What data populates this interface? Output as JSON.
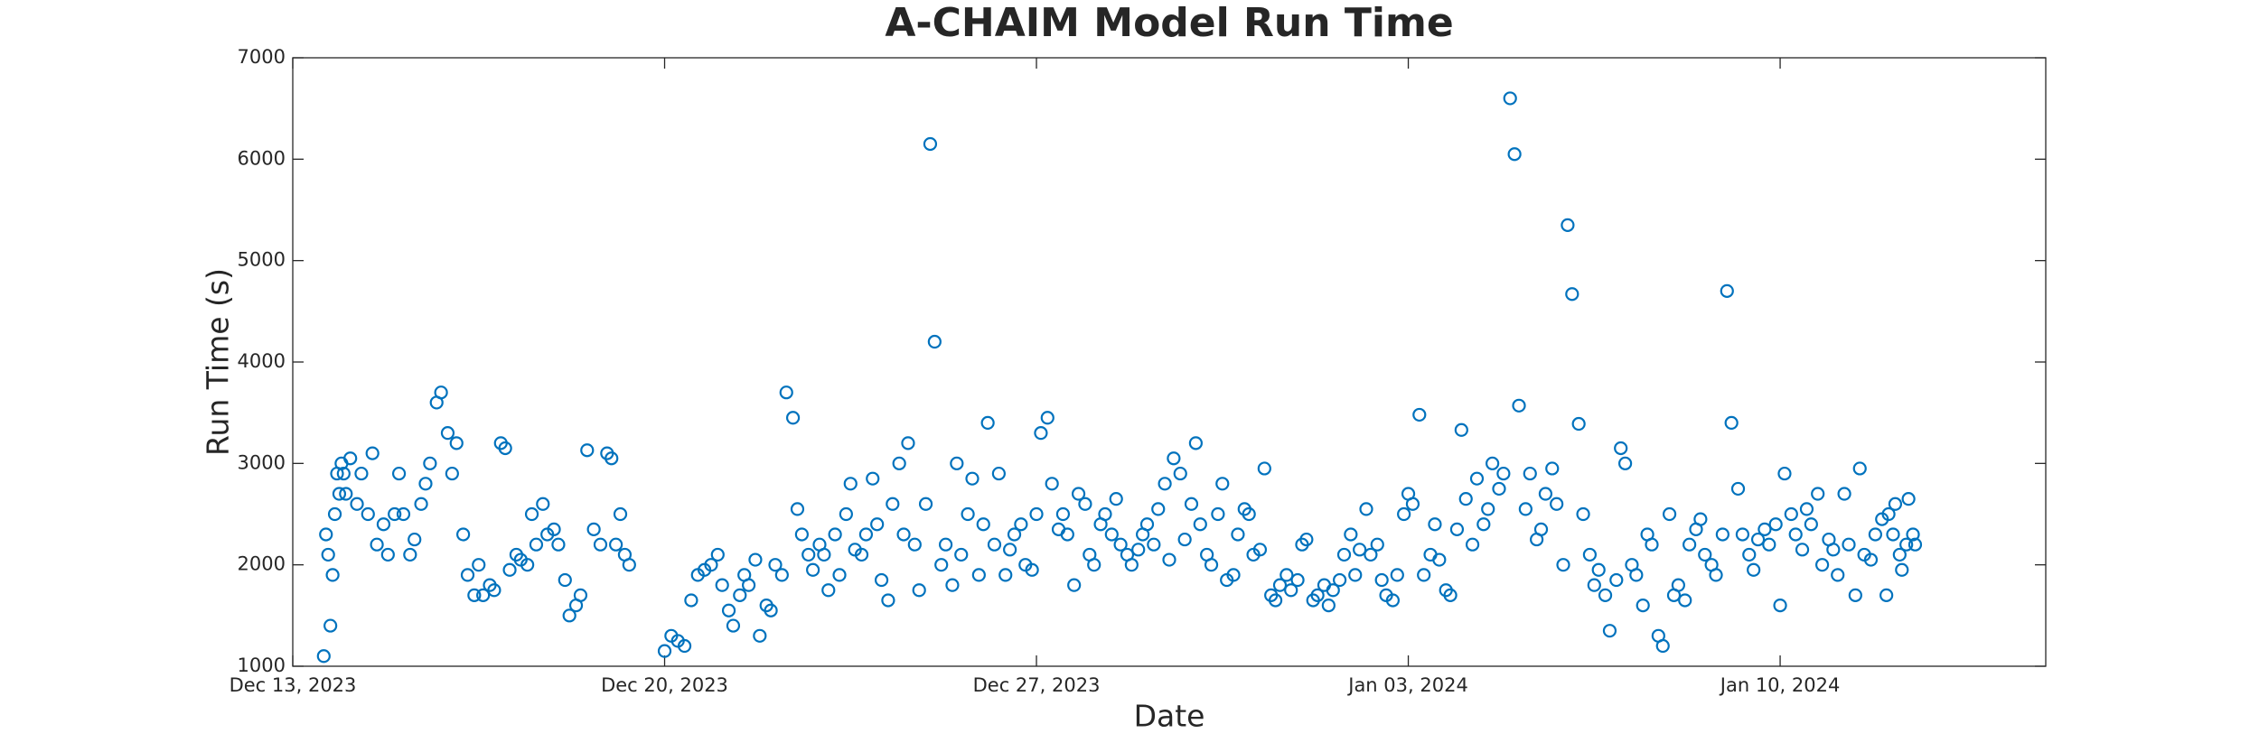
{
  "chart_data": {
    "type": "scatter",
    "title": "A-CHAIM Model Run Time",
    "xlabel": "Date",
    "ylabel": "Run Time (s)",
    "color": "#0072bd",
    "xlim": [
      "2023-12-13",
      "2024-01-15"
    ],
    "xticks": [
      {
        "value": "2023-12-13",
        "label": "Dec 13, 2023"
      },
      {
        "value": "2023-12-20",
        "label": "Dec 20, 2023"
      },
      {
        "value": "2023-12-27",
        "label": "Dec 27, 2023"
      },
      {
        "value": "2024-01-03",
        "label": "Jan 03, 2024"
      },
      {
        "value": "2024-01-10",
        "label": "Jan 10, 2024"
      }
    ],
    "ylim": [
      1000,
      7000
    ],
    "yticks": [
      1000,
      2000,
      3000,
      4000,
      5000,
      6000,
      7000
    ],
    "x": [
      "2023-12-13T14:00",
      "2023-12-13T15:00",
      "2023-12-13T16:00",
      "2023-12-13T17:00",
      "2023-12-13T18:00",
      "2023-12-13T19:00",
      "2023-12-13T20:00",
      "2023-12-13T21:00",
      "2023-12-13T22:00",
      "2023-12-13T23:00",
      "2023-12-14T00:00",
      "2023-12-14T02:00",
      "2023-12-14T05:00",
      "2023-12-14T07:00",
      "2023-12-14T10:00",
      "2023-12-14T12:00",
      "2023-12-14T14:00",
      "2023-12-14T17:00",
      "2023-12-14T19:00",
      "2023-12-14T22:00",
      "2023-12-15T00:00",
      "2023-12-15T02:00",
      "2023-12-15T05:00",
      "2023-12-15T07:00",
      "2023-12-15T10:00",
      "2023-12-15T12:00",
      "2023-12-15T14:00",
      "2023-12-15T17:00",
      "2023-12-15T19:00",
      "2023-12-15T22:00",
      "2023-12-16T00:00",
      "2023-12-16T02:00",
      "2023-12-16T05:00",
      "2023-12-16T07:00",
      "2023-12-16T10:00",
      "2023-12-16T12:00",
      "2023-12-16T14:00",
      "2023-12-16T17:00",
      "2023-12-16T19:00",
      "2023-12-16T22:00",
      "2023-12-17T00:00",
      "2023-12-17T02:00",
      "2023-12-17T05:00",
      "2023-12-17T07:00",
      "2023-12-17T10:00",
      "2023-12-17T12:00",
      "2023-12-17T14:00",
      "2023-12-17T17:00",
      "2023-12-17T19:00",
      "2023-12-17T22:00",
      "2023-12-18T00:00",
      "2023-12-18T03:00",
      "2023-12-18T05:00",
      "2023-12-18T08:00",
      "2023-12-18T10:00",
      "2023-12-18T13:00",
      "2023-12-18T16:00",
      "2023-12-18T19:00",
      "2023-12-18T22:00",
      "2023-12-19T00:00",
      "2023-12-19T02:00",
      "2023-12-19T04:00",
      "2023-12-19T06:00",
      "2023-12-19T08:00",
      "2023-12-20T00:00",
      "2023-12-20T03:00",
      "2023-12-20T06:00",
      "2023-12-20T09:00",
      "2023-12-20T12:00",
      "2023-12-20T15:00",
      "2023-12-20T18:00",
      "2023-12-20T21:00",
      "2023-12-21T00:00",
      "2023-12-21T02:00",
      "2023-12-21T05:00",
      "2023-12-21T07:00",
      "2023-12-21T10:00",
      "2023-12-21T12:00",
      "2023-12-21T14:00",
      "2023-12-21T17:00",
      "2023-12-21T19:00",
      "2023-12-21T22:00",
      "2023-12-22T00:00",
      "2023-12-22T02:00",
      "2023-12-22T05:00",
      "2023-12-22T07:00",
      "2023-12-22T10:00",
      "2023-12-22T12:00",
      "2023-12-22T14:00",
      "2023-12-22T17:00",
      "2023-12-22T19:00",
      "2023-12-22T22:00",
      "2023-12-23T00:00",
      "2023-12-23T02:00",
      "2023-12-23T05:00",
      "2023-12-23T07:00",
      "2023-12-23T10:00",
      "2023-12-23T12:00",
      "2023-12-23T14:00",
      "2023-12-23T17:00",
      "2023-12-23T19:00",
      "2023-12-23T22:00",
      "2023-12-24T00:00",
      "2023-12-24T02:00",
      "2023-12-24T05:00",
      "2023-12-24T07:00",
      "2023-12-24T10:00",
      "2023-12-24T12:00",
      "2023-12-24T14:00",
      "2023-12-24T17:00",
      "2023-12-24T19:00",
      "2023-12-24T22:00",
      "2023-12-25T00:00",
      "2023-12-25T02:00",
      "2023-12-25T05:00",
      "2023-12-25T07:00",
      "2023-12-25T10:00",
      "2023-12-25T12:00",
      "2023-12-25T14:00",
      "2023-12-25T17:00",
      "2023-12-25T19:00",
      "2023-12-25T22:00",
      "2023-12-26T00:00",
      "2023-12-26T02:00",
      "2023-12-26T05:00",
      "2023-12-26T07:00",
      "2023-12-26T10:00",
      "2023-12-26T12:00",
      "2023-12-26T14:00",
      "2023-12-26T17:00",
      "2023-12-26T19:00",
      "2023-12-26T22:00",
      "2023-12-27T00:00",
      "2023-12-27T02:00",
      "2023-12-27T05:00",
      "2023-12-27T07:00",
      "2023-12-27T10:00",
      "2023-12-27T12:00",
      "2023-12-27T14:00",
      "2023-12-27T17:00",
      "2023-12-27T19:00",
      "2023-12-27T22:00",
      "2023-12-28T00:00",
      "2023-12-28T02:00",
      "2023-12-28T05:00",
      "2023-12-28T07:00",
      "2023-12-28T10:00",
      "2023-12-28T12:00",
      "2023-12-28T14:00",
      "2023-12-28T17:00",
      "2023-12-28T19:00",
      "2023-12-28T22:00",
      "2023-12-29T00:00",
      "2023-12-29T02:00",
      "2023-12-29T05:00",
      "2023-12-29T07:00",
      "2023-12-29T10:00",
      "2023-12-29T12:00",
      "2023-12-29T14:00",
      "2023-12-29T17:00",
      "2023-12-29T19:00",
      "2023-12-29T22:00",
      "2023-12-30T00:00",
      "2023-12-30T02:00",
      "2023-12-30T05:00",
      "2023-12-30T07:00",
      "2023-12-30T10:00",
      "2023-12-30T12:00",
      "2023-12-30T14:00",
      "2023-12-30T17:00",
      "2023-12-30T19:00",
      "2023-12-30T22:00",
      "2023-12-31T00:00",
      "2023-12-31T02:00",
      "2023-12-31T05:00",
      "2023-12-31T07:00",
      "2023-12-31T10:00",
      "2023-12-31T12:00",
      "2023-12-31T14:00",
      "2023-12-31T17:00",
      "2023-12-31T19:00",
      "2023-12-31T22:00",
      "2024-01-01T00:00",
      "2024-01-01T02:00",
      "2024-01-01T05:00",
      "2024-01-01T07:00",
      "2024-01-01T10:00",
      "2024-01-01T12:00",
      "2024-01-01T14:00",
      "2024-01-01T17:00",
      "2024-01-01T19:00",
      "2024-01-01T22:00",
      "2024-01-02T00:00",
      "2024-01-02T02:00",
      "2024-01-02T05:00",
      "2024-01-02T07:00",
      "2024-01-02T10:00",
      "2024-01-02T12:00",
      "2024-01-02T14:00",
      "2024-01-02T17:00",
      "2024-01-02T19:00",
      "2024-01-02T22:00",
      "2024-01-03T00:00",
      "2024-01-03T02:00",
      "2024-01-03T05:00",
      "2024-01-03T07:00",
      "2024-01-03T10:00",
      "2024-01-03T12:00",
      "2024-01-03T14:00",
      "2024-01-03T17:00",
      "2024-01-03T19:00",
      "2024-01-03T22:00",
      "2024-01-04T00:00",
      "2024-01-04T02:00",
      "2024-01-04T05:00",
      "2024-01-04T07:00",
      "2024-01-04T10:00",
      "2024-01-04T12:00",
      "2024-01-04T14:00",
      "2024-01-04T17:00",
      "2024-01-04T19:00",
      "2024-01-04T22:00",
      "2024-01-05T00:00",
      "2024-01-05T02:00",
      "2024-01-05T05:00",
      "2024-01-05T07:00",
      "2024-01-05T10:00",
      "2024-01-05T12:00",
      "2024-01-05T14:00",
      "2024-01-05T17:00",
      "2024-01-05T19:00",
      "2024-01-05T22:00",
      "2024-01-06T00:00",
      "2024-01-06T02:00",
      "2024-01-06T05:00",
      "2024-01-06T07:00",
      "2024-01-06T10:00",
      "2024-01-06T12:00",
      "2024-01-06T14:00",
      "2024-01-06T17:00",
      "2024-01-06T19:00",
      "2024-01-06T22:00",
      "2024-01-07T00:00",
      "2024-01-07T02:00",
      "2024-01-07T05:00",
      "2024-01-07T07:00",
      "2024-01-07T10:00",
      "2024-01-07T12:00",
      "2024-01-07T14:00",
      "2024-01-07T17:00",
      "2024-01-07T19:00",
      "2024-01-07T22:00",
      "2024-01-08T00:00",
      "2024-01-08T02:00",
      "2024-01-08T05:00",
      "2024-01-08T07:00",
      "2024-01-08T10:00",
      "2024-01-08T12:00",
      "2024-01-08T14:00",
      "2024-01-08T17:00",
      "2024-01-08T19:00",
      "2024-01-08T22:00",
      "2024-01-09T00:00",
      "2024-01-09T02:00",
      "2024-01-09T05:00",
      "2024-01-09T07:00",
      "2024-01-09T10:00",
      "2024-01-09T12:00",
      "2024-01-09T14:00",
      "2024-01-09T17:00",
      "2024-01-09T19:00",
      "2024-01-09T22:00",
      "2024-01-10T00:00",
      "2024-01-10T02:00",
      "2024-01-10T05:00",
      "2024-01-10T07:00",
      "2024-01-10T10:00",
      "2024-01-10T12:00",
      "2024-01-10T14:00",
      "2024-01-10T17:00",
      "2024-01-10T19:00",
      "2024-01-10T22:00",
      "2024-01-11T00:00",
      "2024-01-11T02:00",
      "2024-01-11T05:00",
      "2024-01-11T07:00",
      "2024-01-11T10:00",
      "2024-01-11T12:00",
      "2024-01-11T14:00",
      "2024-01-11T17:00",
      "2024-01-11T19:00",
      "2024-01-11T22:00",
      "2024-01-12T00:00",
      "2024-01-12T01:00",
      "2024-01-12T03:00",
      "2024-01-12T04:00",
      "2024-01-12T06:00",
      "2024-01-12T07:00",
      "2024-01-12T09:00",
      "2024-01-12T10:00",
      "2024-01-12T12:00",
      "2024-01-12T13:00"
    ],
    "values": [
      1100,
      2300,
      2100,
      1400,
      1900,
      2500,
      2900,
      2700,
      3000,
      2900,
      2700,
      3050,
      2600,
      2900,
      2500,
      3100,
      2200,
      2400,
      2100,
      2500,
      2900,
      2500,
      2100,
      2250,
      2600,
      2800,
      3000,
      3600,
      3700,
      3300,
      2900,
      3200,
      2300,
      1900,
      1700,
      2000,
      1700,
      1800,
      1750,
      3200,
      3150,
      1950,
      2100,
      2050,
      2000,
      2500,
      2200,
      2600,
      2300,
      2350,
      2200,
      1850,
      1500,
      1600,
      1700,
      3130,
      2350,
      2200,
      3100,
      3050,
      2200,
      2500,
      2100,
      2000,
      1150,
      1300,
      1250,
      1200,
      1650,
      1900,
      1950,
      2000,
      2100,
      1800,
      1550,
      1400,
      1700,
      1900,
      1800,
      2050,
      1300,
      1600,
      1550,
      2000,
      1900,
      3700,
      3450,
      2550,
      2300,
      2100,
      1950,
      2200,
      2100,
      1750,
      2300,
      1900,
      2500,
      2800,
      2150,
      2100,
      2300,
      2850,
      2400,
      1850,
      1650,
      2600,
      3000,
      2300,
      3200,
      2200,
      1750,
      2600,
      6150,
      4200,
      2000,
      2200,
      1800,
      3000,
      2100,
      2500,
      2850,
      1900,
      2400,
      3400,
      2200,
      2900,
      1900,
      2150,
      2300,
      2400,
      2000,
      1950,
      2500,
      3300,
      3450,
      2800,
      2350,
      2500,
      2300,
      1800,
      2700,
      2600,
      2100,
      2000,
      2400,
      2500,
      2300,
      2650,
      2200,
      2100,
      2000,
      2150,
      2300,
      2400,
      2200,
      2550,
      2800,
      2050,
      3050,
      2900,
      2250,
      2600,
      3200,
      2400,
      2100,
      2000,
      2500,
      2800,
      1850,
      1900,
      2300,
      2550,
      2500,
      2100,
      2150,
      2950,
      1700,
      1650,
      1800,
      1900,
      1750,
      1850,
      2200,
      2250,
      1650,
      1700,
      1800,
      1600,
      1750,
      1850,
      2100,
      2300,
      1900,
      2150,
      2550,
      2100,
      2200,
      1850,
      1700,
      1650,
      1900,
      2500,
      2700,
      2600,
      3480,
      1900,
      2100,
      2400,
      2050,
      1750,
      1700,
      2350,
      3330,
      2650,
      2200,
      2850,
      2400,
      2550,
      3000,
      2750,
      2900,
      6600,
      6050,
      3570,
      2550,
      2900,
      2250,
      2350,
      2700,
      2950,
      2600,
      2000,
      5350,
      4670,
      3390,
      2500,
      2100,
      1800,
      1950,
      1700,
      1350,
      1850,
      3150,
      3000,
      2000,
      1900,
      1600,
      2300,
      2200,
      1300,
      1200,
      2500,
      1700,
      1800,
      1650,
      2200,
      2350,
      2450,
      2100,
      2000,
      1900,
      2300,
      4700,
      3400,
      2750,
      2300,
      2100,
      1950,
      2250,
      2350,
      2200,
      2400,
      1600,
      2900,
      2500,
      2300,
      2150,
      2550,
      2400,
      2700,
      2000,
      2250,
      2150,
      1900,
      2700,
      2200,
      1700,
      2950,
      2100,
      2050,
      2300,
      2450,
      1700,
      2500,
      2300,
      2600,
      2100,
      1950,
      2200,
      2650,
      2300,
      2200
    ]
  }
}
